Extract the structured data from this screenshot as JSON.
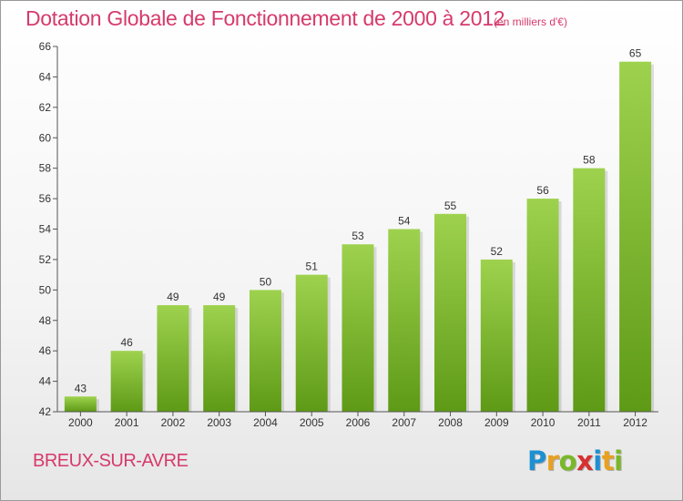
{
  "header": {
    "title": "Dotation Globale de Fonctionnement de 2000 à 2012",
    "unit_note": "(en milliers d'€)"
  },
  "footer": {
    "commune": "BREUX-SUR-AVRE",
    "logo": {
      "text": "Proxiti",
      "letters": [
        {
          "char": "P",
          "color": "#1e90d2"
        },
        {
          "char": "r",
          "color": "#e8a020"
        },
        {
          "char": "o",
          "color": "#7ab828"
        },
        {
          "char": "x",
          "color": "#d83030"
        },
        {
          "char": "i",
          "color": "#1e90d2"
        },
        {
          "char": "t",
          "color": "#e8a020"
        },
        {
          "char": "i",
          "color": "#7ab828"
        }
      ]
    }
  },
  "chart_data": {
    "type": "bar",
    "title": "Dotation Globale de Fonctionnement de 2000 à 2012",
    "subtitle": "(en milliers d'€)",
    "categories": [
      "2000",
      "2001",
      "2002",
      "2003",
      "2004",
      "2005",
      "2006",
      "2007",
      "2008",
      "2009",
      "2010",
      "2011",
      "2012"
    ],
    "values": [
      43,
      46,
      49,
      49,
      50,
      51,
      53,
      54,
      55,
      52,
      56,
      58,
      65
    ],
    "ylim": [
      42,
      66
    ],
    "yticks": [
      42,
      44,
      46,
      48,
      50,
      52,
      54,
      56,
      58,
      60,
      62,
      64,
      66
    ],
    "grid": false,
    "legend": "none",
    "bar_color_top": "#9ed24e",
    "bar_color_bottom": "#5e9a16"
  }
}
